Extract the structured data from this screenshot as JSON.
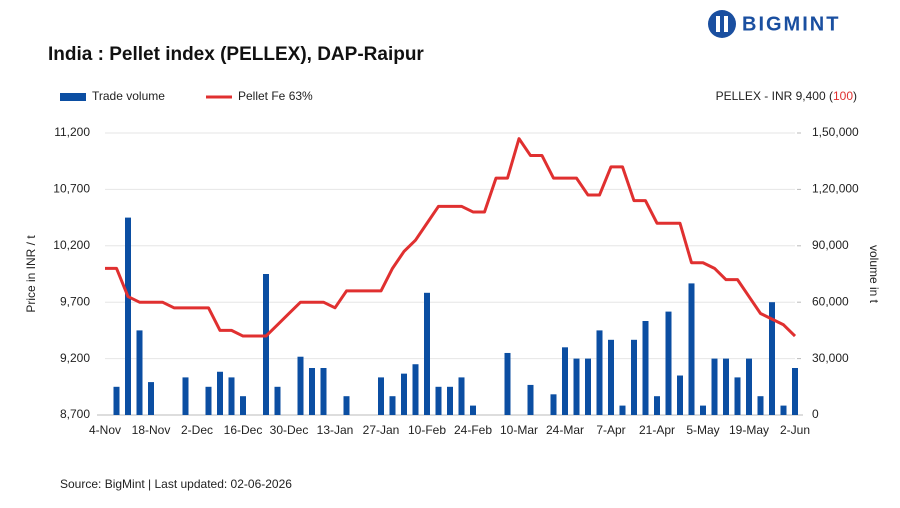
{
  "brand": "BIGMINT",
  "chart_data": {
    "type": "bar-line",
    "title": "India : Pellet index (PELLEX), DAP-Raipur",
    "annotation": {
      "text": "PELLEX - INR 9,400 (",
      "highlight": "100",
      "close": ")"
    },
    "source": "Source: BigMint | Last updated: 02-06-2026",
    "y_label": "Price in INR / t",
    "y2_label": "volume in t",
    "categories": [
      "4-Nov",
      null,
      null,
      null,
      "18-Nov",
      null,
      null,
      null,
      "2-Dec",
      null,
      null,
      null,
      "16-Dec",
      null,
      null,
      null,
      "30-Dec",
      null,
      null,
      null,
      "13-Jan",
      null,
      null,
      null,
      "27-Jan",
      null,
      null,
      null,
      "10-Feb",
      null,
      null,
      null,
      "24-Feb",
      null,
      null,
      null,
      "10-Mar",
      null,
      null,
      null,
      "24-Mar",
      null,
      null,
      null,
      "7-Apr",
      null,
      null,
      null,
      "21-Apr",
      null,
      null,
      null,
      "5-May",
      null,
      null,
      null,
      "19-May",
      null,
      null,
      null,
      "2-Jun"
    ],
    "ylim": [
      8700,
      11200
    ],
    "yticks": [
      {
        "value": 8700,
        "label": "8,700"
      },
      {
        "value": 9200,
        "label": "9,200"
      },
      {
        "value": 9700,
        "label": "9,700"
      },
      {
        "value": 10200,
        "label": "10,200"
      },
      {
        "value": 10700,
        "label": "10,700"
      },
      {
        "value": 11200,
        "label": "11,200"
      }
    ],
    "y2lim": [
      0,
      150000
    ],
    "y2ticks": [
      0,
      {
        "value": 30000,
        "label": "30,000"
      },
      {
        "value": 60000,
        "label": "60,000"
      },
      {
        "value": 90000,
        "label": "90,000"
      },
      {
        "value": 120000,
        "label": "1,20,000"
      },
      {
        "value": 150000,
        "label": "1,50,000"
      }
    ],
    "grid": true,
    "series": [
      {
        "name": "Trade volume",
        "type": "bar",
        "axis": "y2",
        "color": "#0b4ea2",
        "values": [
          null,
          15000,
          105000,
          45000,
          17500,
          null,
          null,
          20000,
          null,
          15000,
          23000,
          20000,
          10000,
          null,
          75000,
          15000,
          null,
          31000,
          25000,
          25000,
          null,
          10000,
          null,
          null,
          20000,
          10000,
          22000,
          27000,
          65000,
          15000,
          15000,
          20000,
          5000,
          null,
          null,
          33000,
          null,
          16000,
          null,
          11000,
          36000,
          30000,
          30000,
          45000,
          40000,
          5000,
          40000,
          50000,
          10000,
          55000,
          21000,
          70000,
          5000,
          30000,
          30000,
          20000,
          30000,
          10000,
          60000,
          5000,
          25000
        ]
      },
      {
        "name": "Pellet Fe 63%",
        "type": "line",
        "color": "#e03030",
        "values": [
          10000,
          10000,
          9750,
          9700,
          9700,
          9700,
          9650,
          9650,
          9650,
          9650,
          9450,
          9450,
          9400,
          9400,
          9400,
          9500,
          9600,
          9700,
          9700,
          9700,
          9650,
          9800,
          9800,
          9800,
          9800,
          10000,
          10150,
          10250,
          10400,
          10550,
          10550,
          10550,
          10500,
          10500,
          10800,
          10800,
          11150,
          11000,
          11000,
          10800,
          10800,
          10800,
          10650,
          10650,
          10900,
          10900,
          10600,
          10600,
          10400,
          10400,
          10400,
          10050,
          10050,
          10000,
          9900,
          9900,
          9750,
          9600,
          9550,
          9500,
          9400
        ]
      }
    ]
  }
}
